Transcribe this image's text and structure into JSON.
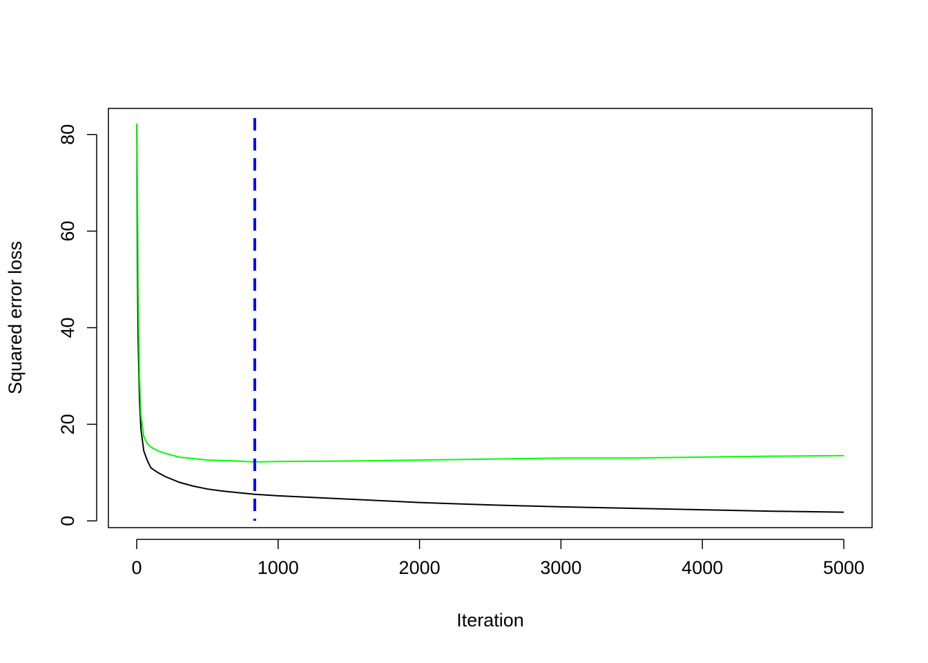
{
  "chart_data": {
    "type": "line",
    "xlabel": "Iteration",
    "ylabel": "Squared error loss",
    "x": [
      1,
      5,
      10,
      20,
      30,
      50,
      75,
      100,
      150,
      200,
      300,
      400,
      500,
      600,
      700,
      835,
      1000,
      1500,
      2000,
      2500,
      3000,
      3500,
      4000,
      4500,
      5000
    ],
    "series": [
      {
        "color": "#000000",
        "values": [
          82,
          55,
          38,
          25,
          19,
          14.5,
          12.5,
          11,
          10,
          9.2,
          8,
          7.2,
          6.6,
          6.2,
          5.9,
          5.5,
          5.2,
          4.5,
          3.8,
          3.3,
          2.9,
          2.6,
          2.3,
          2.0,
          1.8
        ]
      },
      {
        "color": "#00ff00",
        "values": [
          82.3,
          70,
          50,
          30,
          22,
          17.5,
          16,
          15.3,
          14.5,
          14,
          13.2,
          12.9,
          12.6,
          12.5,
          12.4,
          12.2,
          12.3,
          12.4,
          12.6,
          12.8,
          13,
          13,
          13.2,
          13.4,
          13.5
        ]
      }
    ],
    "vline": {
      "x": 835,
      "color": "#0000ff"
    },
    "xlim": [
      -200,
      5200
    ],
    "ylim": [
      -1.4,
      85.4
    ],
    "xticks": [
      0,
      1000,
      2000,
      3000,
      4000,
      5000
    ],
    "yticks": [
      0,
      20,
      40,
      60,
      80
    ]
  }
}
